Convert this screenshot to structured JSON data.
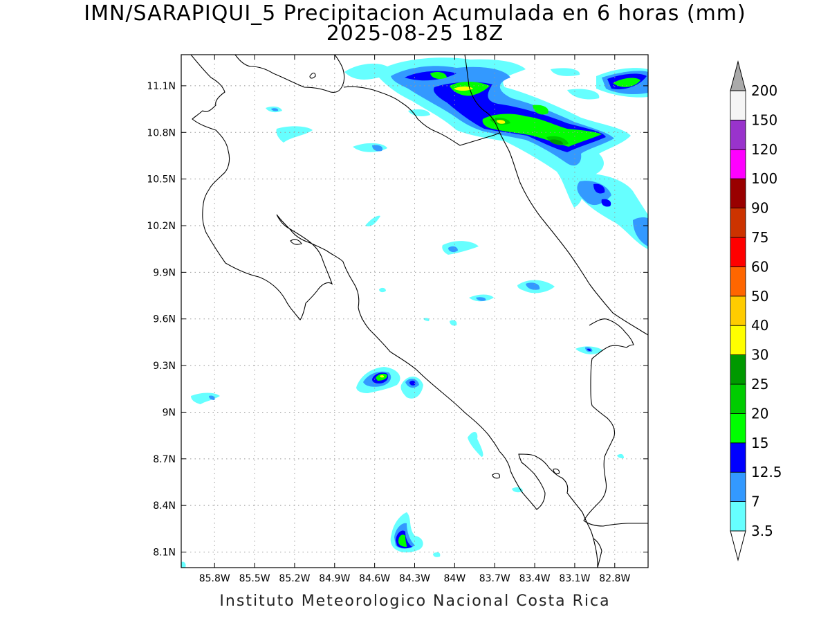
{
  "title": {
    "line1": "IMN/SARAPIQUI_5 Precipitacion Acumulada en 6 horas (mm)",
    "line2": "2025-08-25 18Z"
  },
  "footer": {
    "credit": "Instituto Meteorologico Nacional Costa Rica"
  },
  "map": {
    "lon_range": [
      -86.05,
      -82.55
    ],
    "lat_range": [
      8.0,
      11.3
    ],
    "lon_ticks": [
      {
        "v": -85.8,
        "label": "85.8W"
      },
      {
        "v": -85.5,
        "label": "85.5W"
      },
      {
        "v": -85.2,
        "label": "85.2W"
      },
      {
        "v": -84.9,
        "label": "84.9W"
      },
      {
        "v": -84.6,
        "label": "84.6W"
      },
      {
        "v": -84.3,
        "label": "84.3W"
      },
      {
        "v": -84.0,
        "label": "84W"
      },
      {
        "v": -83.7,
        "label": "83.7W"
      },
      {
        "v": -83.4,
        "label": "83.4W"
      },
      {
        "v": -83.1,
        "label": "83.1W"
      },
      {
        "v": -82.8,
        "label": "82.8W"
      }
    ],
    "lat_ticks": [
      {
        "v": 8.1,
        "label": "8.1N"
      },
      {
        "v": 8.4,
        "label": "8.4N"
      },
      {
        "v": 8.7,
        "label": "8.7N"
      },
      {
        "v": 9.0,
        "label": "9N"
      },
      {
        "v": 9.3,
        "label": "9.3N"
      },
      {
        "v": 9.6,
        "label": "9.6N"
      },
      {
        "v": 9.9,
        "label": "9.9N"
      },
      {
        "v": 10.2,
        "label": "10.2N"
      },
      {
        "v": 10.5,
        "label": "10.5N"
      },
      {
        "v": 10.8,
        "label": "10.8N"
      },
      {
        "v": 11.1,
        "label": "11.1N"
      }
    ],
    "grid": true,
    "colorbar": {
      "levels": [
        {
          "label": "3.5",
          "color": "#66ffff"
        },
        {
          "label": "7",
          "color": "#3399ff"
        },
        {
          "label": "12.5",
          "color": "#0000ff"
        },
        {
          "label": "15",
          "color": "#00ff00"
        },
        {
          "label": "20",
          "color": "#00cc00"
        },
        {
          "label": "25",
          "color": "#009900"
        },
        {
          "label": "30",
          "color": "#ffff00"
        },
        {
          "label": "40",
          "color": "#ffcc00"
        },
        {
          "label": "50",
          "color": "#ff6600"
        },
        {
          "label": "60",
          "color": "#ff0000"
        },
        {
          "label": "75",
          "color": "#cc3300"
        },
        {
          "label": "90",
          "color": "#990000"
        },
        {
          "label": "100",
          "color": "#ff00ff"
        },
        {
          "label": "120",
          "color": "#9933cc"
        },
        {
          "label": "150",
          "color": "#f5f5f5"
        },
        {
          "label": "200",
          "color": "#aaaaaa"
        }
      ]
    }
  }
}
